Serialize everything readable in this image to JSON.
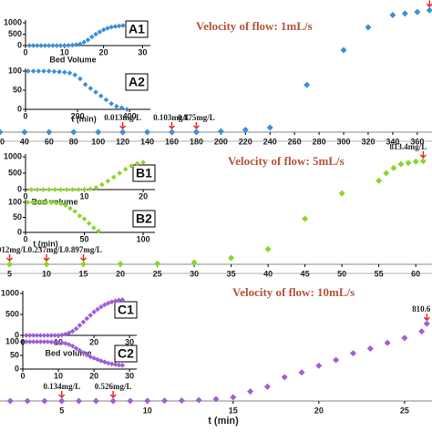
{
  "chart_data": [
    {
      "type": "scatter",
      "title": "Velocity of flow: 1mL/s",
      "color": "#3d8fd6",
      "x": [
        20,
        40,
        60,
        80,
        100,
        120,
        140,
        160,
        180,
        200,
        220,
        240,
        270,
        300,
        320,
        340,
        350,
        360,
        370
      ],
      "values": [
        0,
        0,
        0,
        0,
        0,
        0.013,
        0,
        0.103,
        0.875,
        5,
        15,
        30,
        315,
        546,
        698,
        780,
        790,
        800,
        812
      ],
      "value_labels": [
        null,
        null,
        null,
        null,
        null,
        "0.013mg/L",
        null,
        "0.103mg/L",
        "0.875mg/L",
        null,
        null,
        null,
        null,
        null,
        null,
        null,
        null,
        null,
        "812"
      ],
      "xlim": [
        20,
        372
      ],
      "ylim": [
        0,
        880
      ],
      "xticks": [
        20,
        40,
        60,
        80,
        100,
        120,
        140,
        160,
        180,
        200,
        220,
        240,
        260,
        280,
        300,
        320,
        340,
        360
      ]
    },
    {
      "type": "scatter",
      "label": "A1",
      "xlabel": "Bed Volume",
      "color": "#3d8fd6",
      "x": [
        1,
        2,
        3,
        4,
        5,
        6,
        7,
        8,
        9,
        10,
        11,
        12,
        13,
        14,
        15,
        16,
        17,
        18,
        19,
        20,
        21,
        22,
        23,
        24,
        25
      ],
      "values": [
        0,
        0,
        0,
        0,
        0,
        0,
        0,
        0,
        0,
        5,
        10,
        20,
        40,
        70,
        150,
        250,
        380,
        500,
        600,
        690,
        760,
        810,
        840,
        860,
        880
      ],
      "xlim": [
        0,
        32
      ],
      "ylim": [
        0,
        1000
      ],
      "xticks": [
        0,
        10,
        20,
        30
      ],
      "yticks": [
        0,
        500,
        1000
      ]
    },
    {
      "type": "scatter",
      "label": "A2",
      "xlabel": "t (min)",
      "color": "#3d8fd6",
      "x": [
        10,
        30,
        50,
        70,
        90,
        110,
        130,
        150,
        170,
        190,
        210,
        230,
        250,
        270,
        290,
        310,
        330,
        350,
        370,
        390
      ],
      "values": [
        100,
        100,
        100,
        100,
        100,
        99,
        98,
        97,
        95,
        90,
        80,
        65,
        55,
        45,
        35,
        25,
        15,
        8,
        4,
        0
      ],
      "xlim": [
        0,
        480
      ],
      "ylim": [
        0,
        100
      ],
      "xticks": [
        0,
        200,
        400
      ],
      "yticks": [
        0,
        50,
        100
      ]
    },
    {
      "type": "scatter",
      "title": "Velocity of flow: 5mL/s",
      "color": "#8fd42a",
      "x": [
        5,
        10,
        15,
        20,
        25,
        30,
        35,
        40,
        45,
        50,
        55,
        56,
        57,
        58,
        59,
        60,
        61
      ],
      "values": [
        0.012,
        0.237,
        0.897,
        3,
        5,
        15,
        50,
        120,
        360,
        560,
        660,
        720,
        760,
        790,
        800,
        810,
        813.4
      ],
      "value_labels": [
        "0.012mg/L",
        "0.237mg/L",
        "0.897mg/L",
        null,
        null,
        null,
        null,
        null,
        null,
        null,
        null,
        null,
        null,
        null,
        null,
        null,
        "813.4mg/L"
      ],
      "xlim": [
        3.7,
        62.2
      ],
      "ylim": [
        0,
        935
      ],
      "xticks": [
        5,
        10,
        15,
        20,
        25,
        30,
        35,
        40,
        45,
        50,
        55,
        60
      ]
    },
    {
      "type": "scatter",
      "label": "B1",
      "xlabel": "Bed volume",
      "color": "#8fd42a",
      "x": [
        1,
        2,
        3,
        4,
        5,
        6,
        7,
        8,
        9,
        10,
        11,
        12,
        13,
        14,
        15,
        16,
        17,
        18,
        19,
        20
      ],
      "values": [
        0,
        0,
        0,
        0,
        0,
        0,
        0,
        0,
        0,
        5,
        20,
        60,
        150,
        260,
        380,
        500,
        620,
        720,
        790,
        830
      ],
      "xlim": [
        0,
        22
      ],
      "ylim": [
        0,
        1000
      ],
      "xticks": [
        0,
        10,
        20
      ],
      "yticks": [
        0,
        500,
        1000
      ]
    },
    {
      "type": "scatter",
      "label": "B2",
      "xlabel": "t (min)",
      "color": "#8fd42a",
      "x": [
        2,
        6,
        10,
        14,
        18,
        22,
        26,
        30,
        34,
        38,
        42,
        46,
        50,
        54,
        58,
        62
      ],
      "values": [
        100,
        100,
        100,
        100,
        100,
        99,
        98,
        96,
        90,
        80,
        70,
        55,
        45,
        30,
        15,
        5
      ],
      "xlim": [
        0,
        110
      ],
      "ylim": [
        0,
        100
      ],
      "xticks": [
        0,
        50,
        100
      ],
      "yticks": [
        0,
        50,
        100
      ]
    },
    {
      "type": "scatter",
      "title": "Velocity of flow: 10mL/s",
      "xlabel": "t (min)",
      "color": "#9d5fd6",
      "x": [
        2,
        3,
        4,
        5,
        6,
        7,
        8,
        9,
        10,
        11,
        12,
        13,
        14,
        15,
        16,
        17,
        18,
        19,
        20,
        21,
        22,
        23,
        24,
        25,
        26,
        26.3
      ],
      "values": [
        0,
        0,
        0,
        0.134,
        0,
        0,
        0.526,
        1,
        2,
        3,
        5,
        10,
        20,
        40,
        100,
        150,
        250,
        300,
        370,
        430,
        500,
        550,
        610,
        660,
        730,
        810.6
      ],
      "value_labels": [
        null,
        null,
        null,
        "0.134mg/L",
        null,
        null,
        "0.526mg/L",
        null,
        null,
        null,
        null,
        null,
        null,
        null,
        null,
        null,
        null,
        null,
        null,
        null,
        null,
        null,
        null,
        null,
        null,
        "810.6"
      ],
      "xlim": [
        1.4,
        26.6
      ],
      "ylim": [
        0,
        1290
      ],
      "xticks": [
        5,
        10,
        15,
        20,
        25
      ]
    },
    {
      "type": "scatter",
      "label": "C1",
      "xlabel": "Bed volume",
      "color": "#9d5fd6",
      "x": [
        1,
        2,
        3,
        4,
        5,
        6,
        7,
        8,
        9,
        10,
        11,
        12,
        13,
        14,
        15,
        16,
        17,
        18,
        19,
        20,
        21,
        22,
        23,
        24,
        25,
        26,
        27,
        28
      ],
      "values": [
        0,
        0,
        0,
        0,
        0,
        0,
        0,
        0,
        0,
        0,
        10,
        30,
        60,
        100,
        160,
        240,
        320,
        400,
        480,
        560,
        620,
        680,
        730,
        770,
        800,
        820,
        840,
        850
      ],
      "xlim": [
        0,
        32
      ],
      "ylim": [
        0,
        1000
      ],
      "xticks": [
        0,
        10,
        20,
        30
      ],
      "yticks": [
        0,
        500,
        1000
      ]
    },
    {
      "type": "scatter",
      "label": "C2",
      "color": "#9d5fd6",
      "x": [
        1,
        2,
        3,
        4,
        5,
        6,
        7,
        8,
        9,
        10,
        11,
        12,
        13,
        14,
        15,
        16,
        17,
        18,
        19,
        20,
        21,
        22,
        23,
        24,
        25,
        26,
        27,
        28
      ],
      "values": [
        100,
        100,
        100,
        100,
        100,
        100,
        100,
        99,
        98,
        97,
        96,
        94,
        90,
        84,
        76,
        68,
        60,
        52,
        45,
        40,
        35,
        30,
        26,
        22,
        19,
        17,
        15,
        14
      ],
      "xlim": [
        0,
        32
      ],
      "ylim": [
        0,
        100
      ],
      "xticks": [
        0,
        10,
        20,
        30
      ],
      "yticks": [
        0,
        50,
        100
      ]
    }
  ]
}
